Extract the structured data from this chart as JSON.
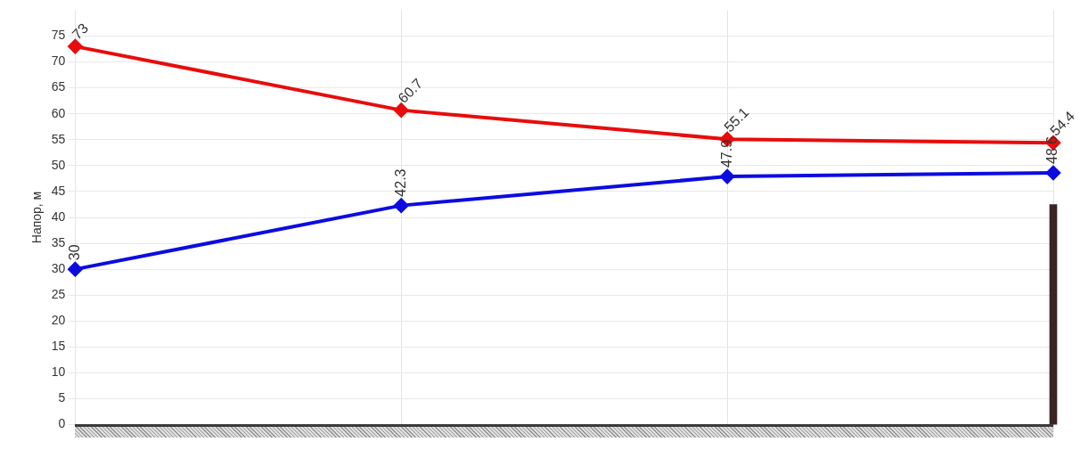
{
  "chart_data": {
    "type": "line",
    "ylabel": "Напор, м",
    "categories": [
      null,
      null,
      null,
      null
    ],
    "series": [
      {
        "name": null,
        "color": "#e80c0c",
        "values": [
          73,
          60.7,
          55.1,
          54.4
        ],
        "value_labels": [
          "73",
          "60.7",
          "55.1",
          "54.4"
        ]
      },
      {
        "name": null,
        "color": "#0c0ce0",
        "values": [
          30,
          42.3,
          47.9,
          48.6
        ],
        "value_labels": [
          "30",
          "42.3",
          "47.9",
          "48.6"
        ]
      },
      {
        "type": "bar",
        "color": "#3a2424",
        "values": [
          null,
          null,
          null,
          42.5
        ]
      }
    ],
    "ylim": [
      0,
      80
    ],
    "yticks": [
      0,
      5,
      10,
      15,
      20,
      25,
      30,
      35,
      40,
      45,
      50,
      55,
      60,
      65,
      70,
      75
    ],
    "grid": true,
    "legend": false,
    "marker": "diamond"
  }
}
